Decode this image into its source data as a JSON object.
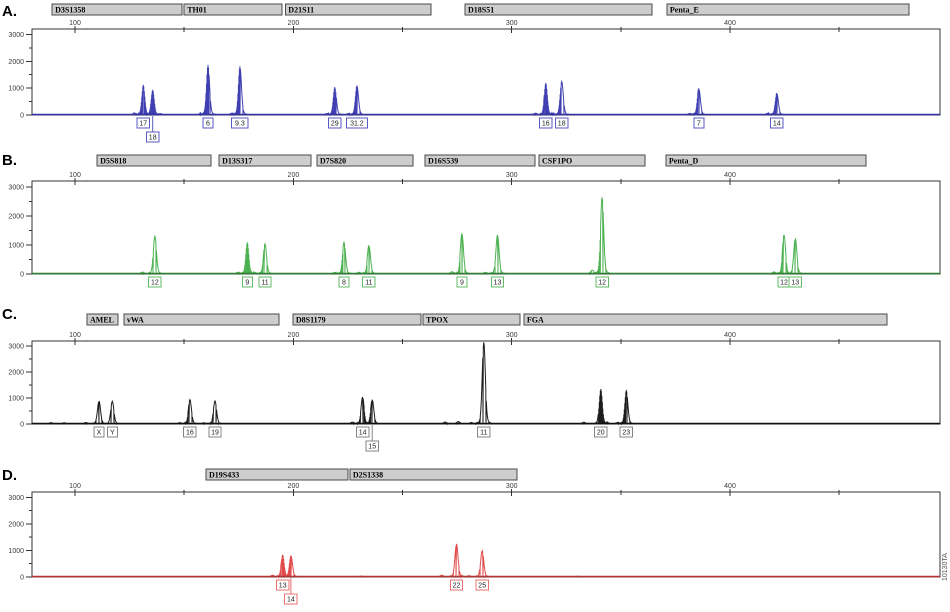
{
  "figure": {
    "side_label": "10130TA"
  },
  "axis": {
    "x_unit": "bases",
    "y_unit": "RFU",
    "y_max": 3200,
    "x_major_ticks": [
      {
        "bp": 100,
        "label": "100"
      },
      {
        "bp": 200,
        "label": "200"
      },
      {
        "bp": 300,
        "label": "300"
      },
      {
        "bp": 400,
        "label": "400"
      }
    ],
    "x_minor_ticks_bp": [
      150,
      250,
      350,
      450
    ],
    "y_major_ticks": [
      {
        "rfu": 0,
        "label": "0"
      },
      {
        "rfu": 1000,
        "label": "1000"
      },
      {
        "rfu": 2000,
        "label": "2000"
      },
      {
        "rfu": 3000,
        "label": "3000"
      }
    ],
    "y_minor_ticks_rfu": [
      500,
      1500,
      2500
    ]
  },
  "chart_data": {
    "type": "line",
    "title": "Four-dye STR electropherogram profile",
    "panels": [
      {
        "label": "A.",
        "color": "#4040b2",
        "baseline_color": "#3434a0",
        "box_color": "#5a5ac0",
        "loci": [
          {
            "name": "D3S1358",
            "start_bp": 89.5,
            "end_bp": 149.0
          },
          {
            "name": "TH01",
            "start_bp": 150.0,
            "end_bp": 194.8
          },
          {
            "name": "D21S11",
            "start_bp": 196.3,
            "end_bp": 263.0
          },
          {
            "name": "D18S51",
            "start_bp": 278.6,
            "end_bp": 364.2
          },
          {
            "name": "Penta_E",
            "start_bp": 371.1,
            "end_bp": 481.9
          }
        ],
        "peaks": [
          {
            "locus": "D3S1358",
            "allele": "17",
            "bp": 131.3,
            "rfu": 1050,
            "row": 1
          },
          {
            "locus": "D3S1358",
            "allele": "18",
            "bp": 135.6,
            "rfu": 900,
            "row": 2
          },
          {
            "locus": "TH01",
            "allele": "6",
            "bp": 160.9,
            "rfu": 1800,
            "row": 1
          },
          {
            "locus": "TH01",
            "allele": "9.3",
            "bp": 175.5,
            "rfu": 1750,
            "row": 1
          },
          {
            "locus": "D21S11",
            "allele": "29",
            "bp": 219.0,
            "rfu": 1000,
            "row": 1
          },
          {
            "locus": "D21S11",
            "allele": "31.2",
            "bp": 229.1,
            "rfu": 1060,
            "row": 1
          },
          {
            "locus": "D18S51",
            "allele": "16",
            "bp": 315.6,
            "rfu": 1150,
            "row": 1
          },
          {
            "locus": "D18S51",
            "allele": "18",
            "bp": 322.9,
            "rfu": 1200,
            "row": 1
          },
          {
            "locus": "Penta_E",
            "allele": "7",
            "bp": 385.7,
            "rfu": 950,
            "row": 1
          },
          {
            "locus": "Penta_E",
            "allele": "14",
            "bp": 421.4,
            "rfu": 780,
            "row": 1
          }
        ],
        "noise": [
          {
            "bp": 127.3,
            "rfu": 70
          },
          {
            "bp": 138.9,
            "rfu": 50
          },
          {
            "bp": 157.5,
            "rfu": 45
          },
          {
            "bp": 171.8,
            "rfu": 55
          },
          {
            "bp": 215.6,
            "rfu": 55
          },
          {
            "bp": 225.3,
            "rfu": 45
          },
          {
            "bp": 310.9,
            "rfu": 60
          },
          {
            "bp": 318.8,
            "rfu": 70
          },
          {
            "bp": 381.5,
            "rfu": 45
          },
          {
            "bp": 417.3,
            "rfu": 55
          }
        ]
      },
      {
        "label": "B.",
        "color": "#4cb251",
        "baseline_color": "#2e7d32",
        "box_color": "#63bb68",
        "loci": [
          {
            "name": "D5S818",
            "start_bp": 110.1,
            "end_bp": 162.3
          },
          {
            "name": "D13S317",
            "start_bp": 166.0,
            "end_bp": 208.1
          },
          {
            "name": "D7S820",
            "start_bp": 210.8,
            "end_bp": 254.8
          },
          {
            "name": "D16S539",
            "start_bp": 260.3,
            "end_bp": 310.6
          },
          {
            "name": "CSF1PO",
            "start_bp": 312.5,
            "end_bp": 361.0
          },
          {
            "name": "Penta_D",
            "start_bp": 370.6,
            "end_bp": 462.2
          }
        ],
        "peaks": [
          {
            "locus": "D5S818",
            "allele": "12",
            "bp": 136.6,
            "rfu": 1250,
            "row": 1
          },
          {
            "locus": "D13S317",
            "allele": "9",
            "bp": 178.9,
            "rfu": 1050,
            "row": 1
          },
          {
            "locus": "D13S317",
            "allele": "11",
            "bp": 187.0,
            "rfu": 1000,
            "row": 1
          },
          {
            "locus": "D7S820",
            "allele": "8",
            "bp": 223.2,
            "rfu": 1050,
            "row": 1
          },
          {
            "locus": "D7S820",
            "allele": "11",
            "bp": 234.6,
            "rfu": 950,
            "row": 1
          },
          {
            "locus": "D16S539",
            "allele": "9",
            "bp": 277.2,
            "rfu": 1350,
            "row": 1
          },
          {
            "locus": "D16S539",
            "allele": "13",
            "bp": 293.5,
            "rfu": 1300,
            "row": 1
          },
          {
            "locus": "CSF1PO",
            "allele": "12",
            "bp": 341.4,
            "rfu": 2550,
            "row": 1
          },
          {
            "locus": "Penta_D",
            "allele": "12",
            "bp": 424.7,
            "rfu": 1300,
            "row": 1
          },
          {
            "locus": "Penta_D",
            "allele": "13",
            "bp": 429.9,
            "rfu": 1180,
            "row": 1
          }
        ],
        "noise": [
          {
            "bp": 130.9,
            "rfu": 55
          },
          {
            "bp": 174.7,
            "rfu": 50
          },
          {
            "bp": 182.2,
            "rfu": 45
          },
          {
            "bp": 219.0,
            "rfu": 45
          },
          {
            "bp": 230.0,
            "rfu": 50
          },
          {
            "bp": 272.6,
            "rfu": 65
          },
          {
            "bp": 288.0,
            "rfu": 45
          },
          {
            "bp": 336.9,
            "rfu": 120
          },
          {
            "bp": 420.1,
            "rfu": 60
          }
        ]
      },
      {
        "label": "C.",
        "color": "#1d1d1d",
        "baseline_color": "#111111",
        "box_color": "#858585",
        "loci": [
          {
            "name": "AMEL",
            "start_bp": 105.5,
            "end_bp": 119.7
          },
          {
            "name": "vWA",
            "start_bp": 122.4,
            "end_bp": 193.4
          },
          {
            "name": "D8S1179",
            "start_bp": 199.8,
            "end_bp": 258.4
          },
          {
            "name": "TPOX",
            "start_bp": 259.4,
            "end_bp": 303.8
          },
          {
            "name": "FGA",
            "start_bp": 305.6,
            "end_bp": 471.9
          }
        ],
        "peaks": [
          {
            "locus": "AMEL",
            "allele": "X",
            "bp": 111.0,
            "rfu": 850,
            "row": 1
          },
          {
            "locus": "AMEL",
            "allele": "Y",
            "bp": 117.1,
            "rfu": 840,
            "row": 1
          },
          {
            "locus": "vWA",
            "allele": "16",
            "bp": 152.6,
            "rfu": 900,
            "row": 1
          },
          {
            "locus": "vWA",
            "allele": "19",
            "bp": 164.1,
            "rfu": 850,
            "row": 1
          },
          {
            "locus": "D8S1179",
            "allele": "14",
            "bp": 231.7,
            "rfu": 1000,
            "row": 1
          },
          {
            "locus": "D8S1179",
            "allele": "15",
            "bp": 236.1,
            "rfu": 900,
            "row": 2
          },
          {
            "locus": "TPOX",
            "allele": "11",
            "bp": 287.2,
            "rfu": 3050,
            "row": 1
          },
          {
            "locus": "FGA",
            "allele": "20",
            "bp": 340.8,
            "rfu": 1300,
            "row": 1
          },
          {
            "locus": "FGA",
            "allele": "23",
            "bp": 352.5,
            "rfu": 1230,
            "row": 1
          }
        ],
        "noise": [
          {
            "bp": 89.0,
            "rfu": 40
          },
          {
            "bp": 95.0,
            "rfu": 35
          },
          {
            "bp": 105.0,
            "rfu": 45
          },
          {
            "bp": 148.0,
            "rfu": 40
          },
          {
            "bp": 159.0,
            "rfu": 35
          },
          {
            "bp": 227.0,
            "rfu": 60
          },
          {
            "bp": 269.5,
            "rfu": 65
          },
          {
            "bp": 275.5,
            "rfu": 80
          },
          {
            "bp": 281.5,
            "rfu": 45
          },
          {
            "bp": 333.0,
            "rfu": 55
          },
          {
            "bp": 343.5,
            "rfu": 50
          },
          {
            "bp": 348.5,
            "rfu": 45
          }
        ]
      },
      {
        "label": "D.",
        "color": "#e14b4b",
        "baseline_color": "#b23636",
        "box_color": "#ea7070",
        "loci": [
          {
            "name": "D19S433",
            "start_bp": 160.0,
            "end_bp": 225.0
          },
          {
            "name": "D2S1338",
            "start_bp": 225.9,
            "end_bp": 302.4
          }
        ],
        "peaks": [
          {
            "locus": "D19S433",
            "allele": "13",
            "bp": 195.1,
            "rfu": 800,
            "row": 1
          },
          {
            "locus": "D19S433",
            "allele": "14",
            "bp": 198.9,
            "rfu": 780,
            "row": 2
          },
          {
            "locus": "D2S1338",
            "allele": "22",
            "bp": 274.7,
            "rfu": 1200,
            "row": 1
          },
          {
            "locus": "D2S1338",
            "allele": "25",
            "bp": 286.5,
            "rfu": 950,
            "row": 1
          }
        ],
        "noise": [
          {
            "bp": 190.5,
            "rfu": 50
          },
          {
            "bp": 231.0,
            "rfu": 25
          },
          {
            "bp": 268.0,
            "rfu": 55
          },
          {
            "bp": 280.5,
            "rfu": 40
          },
          {
            "bp": 330.0,
            "rfu": 20
          }
        ]
      }
    ]
  }
}
